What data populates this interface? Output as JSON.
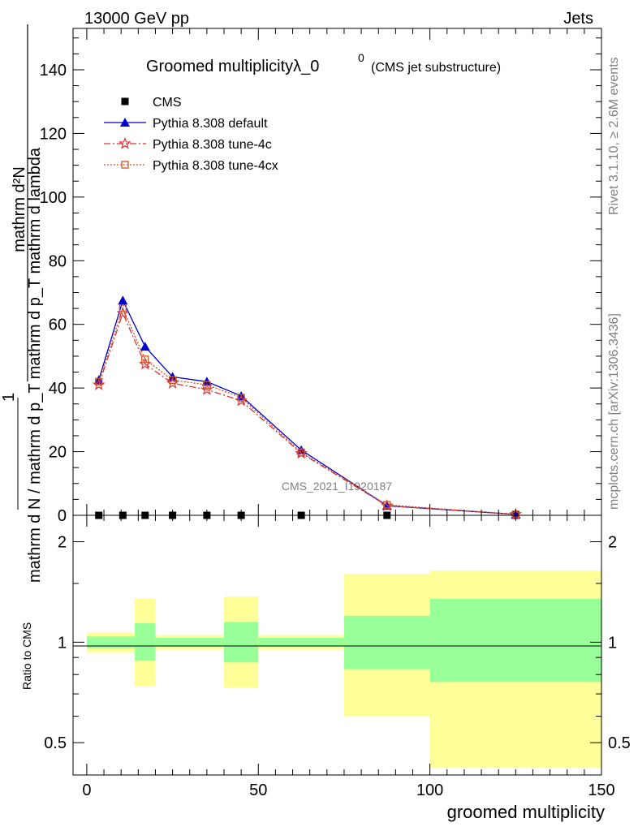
{
  "header": {
    "left": "13000 GeV pp",
    "right": "Jets"
  },
  "side_labels": {
    "rivet": "Rivet 3.1.10, ≥ 2.6M events",
    "source": "mcplots.cern.ch [arXiv:1306.3436]"
  },
  "chart_data": {
    "type": "line",
    "title": "Groomed multiplicityλ_0",
    "title_superscript": "0",
    "title_suffix": "(CMS jet substructure)",
    "analysis_label": "CMS_2021_I1920187",
    "ylabel_numerator": "mathrm d²N",
    "ylabel_denominator": "mathrm d N / mathrm d p_T mathrm d p_T mathrm d lambda",
    "ylabel_prefix": "1",
    "ratio_ylabel": "Ratio to CMS",
    "xlabel": "groomed multiplicity",
    "xlim": [
      -4,
      150
    ],
    "ylim": [
      0,
      153
    ],
    "ratio_ylim": [
      0.4,
      2.4
    ],
    "ratio_log": true,
    "x_ticks": [
      0,
      50,
      100,
      150
    ],
    "y_ticks": [
      0,
      20,
      40,
      60,
      80,
      100,
      120,
      140
    ],
    "ratio_ticks": [
      0.5,
      1,
      2
    ],
    "bin_edges": [
      0,
      7,
      14,
      20,
      30,
      40,
      50,
      75,
      100,
      150
    ],
    "x": [
      3.5,
      10.5,
      17,
      25,
      35,
      45,
      62.5,
      87.5,
      125
    ],
    "series": [
      {
        "name": "CMS",
        "marker": "square",
        "color": "#000000",
        "values": [
          0,
          0,
          0,
          0,
          0,
          0,
          0,
          0,
          0
        ]
      },
      {
        "name": "Pythia 8.308 default",
        "marker": "triangle",
        "color": "#0000cc",
        "line": "solid",
        "values": [
          42.5,
          67.5,
          53,
          43.5,
          42,
          37.5,
          20.5,
          3,
          0.3
        ]
      },
      {
        "name": "Pythia 8.308 tune-4c",
        "marker": "star",
        "color": "#dd3333",
        "line": "dashdot",
        "values": [
          41,
          63.5,
          47.5,
          41.5,
          39.5,
          36,
          19.5,
          3,
          0.3
        ]
      },
      {
        "name": "Pythia 8.308 tune-4cx",
        "marker": "open-square",
        "color": "#cc5522",
        "line": "dotted",
        "values": [
          42,
          65,
          49,
          42.5,
          41,
          37,
          19.8,
          3.3,
          0.3
        ]
      }
    ],
    "ratio_bands": {
      "yellow_color": "#ffff99",
      "green_color": "#99ff99",
      "bins": [
        {
          "lo": 0,
          "hi": 14,
          "y_lo": 0.93,
          "y_hi": 1.07,
          "g_lo": 0.96,
          "g_hi": 1.04
        },
        {
          "lo": 14,
          "hi": 20,
          "y_lo": 0.74,
          "y_hi": 1.35,
          "g_lo": 0.88,
          "g_hi": 1.14
        },
        {
          "lo": 20,
          "hi": 40,
          "y_lo": 0.95,
          "y_hi": 1.05,
          "g_lo": 0.97,
          "g_hi": 1.03
        },
        {
          "lo": 40,
          "hi": 50,
          "y_lo": 0.73,
          "y_hi": 1.37,
          "g_lo": 0.87,
          "g_hi": 1.15
        },
        {
          "lo": 50,
          "hi": 75,
          "y_lo": 0.95,
          "y_hi": 1.05,
          "g_lo": 0.97,
          "g_hi": 1.03
        },
        {
          "lo": 75,
          "hi": 100,
          "y_lo": 0.6,
          "y_hi": 1.6,
          "g_lo": 0.83,
          "g_hi": 1.2
        },
        {
          "lo": 100,
          "hi": 150,
          "y_lo": 0.42,
          "y_hi": 1.64,
          "g_lo": 0.76,
          "g_hi": 1.35
        }
      ]
    },
    "grid": false,
    "legend_position": "top-left"
  }
}
